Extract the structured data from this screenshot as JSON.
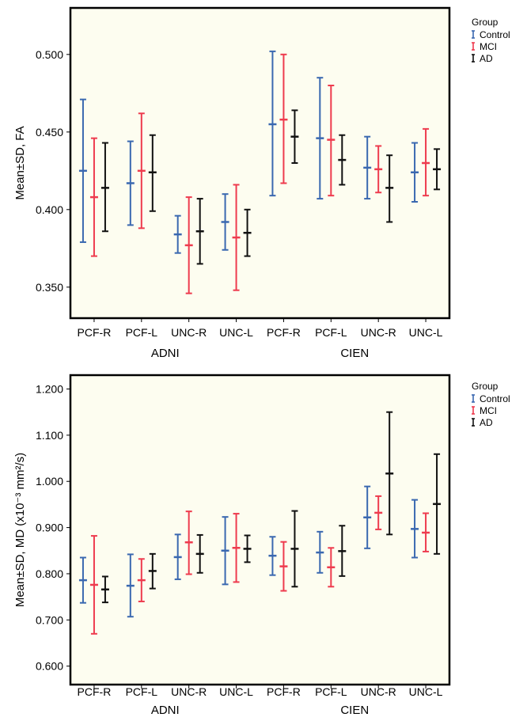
{
  "legend_title": "Group",
  "colors": {
    "Control": "#3a68b0",
    "MCI": "#ee3b4e",
    "AD": "#111111",
    "plot_bg": "#fdfdf0"
  },
  "chart_data": [
    {
      "type": "errorbar",
      "ylabel": "Mean±SD, FA",
      "ytick_labels": [
        "0.350",
        "0.400",
        "0.450",
        "0.500"
      ],
      "ylim": [
        0.33,
        0.53
      ],
      "legend_position": "top-right",
      "legend": [
        "Control",
        "MCI",
        "AD"
      ],
      "groups": [
        {
          "name": "ADNI",
          "categories": [
            "PCF-R",
            "PCF-L",
            "UNC-R",
            "UNC-L"
          ]
        },
        {
          "name": "CIEN",
          "categories": [
            "PCF-R",
            "PCF-L",
            "UNC-R",
            "UNC-L"
          ]
        }
      ],
      "series": [
        {
          "name": "Control",
          "mean": [
            0.425,
            0.417,
            0.384,
            0.392,
            0.455,
            0.446,
            0.427,
            0.424
          ],
          "lower": [
            0.379,
            0.39,
            0.372,
            0.374,
            0.409,
            0.407,
            0.407,
            0.405
          ],
          "upper": [
            0.471,
            0.444,
            0.396,
            0.41,
            0.502,
            0.485,
            0.447,
            0.443
          ]
        },
        {
          "name": "MCI",
          "mean": [
            0.408,
            0.425,
            0.377,
            0.382,
            0.458,
            0.445,
            0.426,
            0.43
          ],
          "lower": [
            0.37,
            0.388,
            0.346,
            0.348,
            0.417,
            0.409,
            0.411,
            0.409
          ],
          "upper": [
            0.446,
            0.462,
            0.408,
            0.416,
            0.5,
            0.48,
            0.441,
            0.452
          ]
        },
        {
          "name": "AD",
          "mean": [
            0.414,
            0.424,
            0.386,
            0.385,
            0.447,
            0.432,
            0.414,
            0.426
          ],
          "lower": [
            0.386,
            0.399,
            0.365,
            0.37,
            0.43,
            0.416,
            0.392,
            0.413
          ],
          "upper": [
            0.443,
            0.448,
            0.407,
            0.4,
            0.464,
            0.448,
            0.435,
            0.439
          ]
        }
      ]
    },
    {
      "type": "errorbar",
      "ylabel": "Mean±SD, MD (x10⁻³ mm²/s)",
      "ytick_labels": [
        "0.600",
        "0.700",
        "0.800",
        "0.900",
        "1.000",
        "1.100",
        "1.200"
      ],
      "ylim": [
        0.56,
        1.23
      ],
      "legend_position": "top-right",
      "legend": [
        "Control",
        "MCI",
        "AD"
      ],
      "groups": [
        {
          "name": "ADNI",
          "categories": [
            "PCF-R",
            "PCF-L",
            "UNC-R",
            "UNC-L"
          ]
        },
        {
          "name": "CIEN",
          "categories": [
            "PCF-R",
            "PCF-L",
            "UNC-R",
            "UNC-L"
          ]
        }
      ],
      "series": [
        {
          "name": "Control",
          "mean": [
            0.786,
            0.774,
            0.836,
            0.85,
            0.839,
            0.846,
            0.922,
            0.897
          ],
          "lower": [
            0.737,
            0.707,
            0.788,
            0.777,
            0.797,
            0.802,
            0.855,
            0.835
          ],
          "upper": [
            0.835,
            0.842,
            0.885,
            0.923,
            0.88,
            0.891,
            0.989,
            0.96
          ]
        },
        {
          "name": "MCI",
          "mean": [
            0.776,
            0.786,
            0.868,
            0.856,
            0.816,
            0.814,
            0.932,
            0.889
          ],
          "lower": [
            0.67,
            0.74,
            0.799,
            0.782,
            0.763,
            0.772,
            0.896,
            0.848
          ],
          "upper": [
            0.882,
            0.832,
            0.935,
            0.93,
            0.869,
            0.856,
            0.968,
            0.931
          ]
        },
        {
          "name": "AD",
          "mean": [
            0.766,
            0.806,
            0.843,
            0.854,
            0.854,
            0.849,
            1.017,
            0.951
          ],
          "lower": [
            0.738,
            0.768,
            0.802,
            0.825,
            0.772,
            0.795,
            0.885,
            0.843
          ],
          "upper": [
            0.794,
            0.843,
            0.884,
            0.883,
            0.936,
            0.904,
            1.15,
            1.059
          ]
        }
      ]
    }
  ]
}
